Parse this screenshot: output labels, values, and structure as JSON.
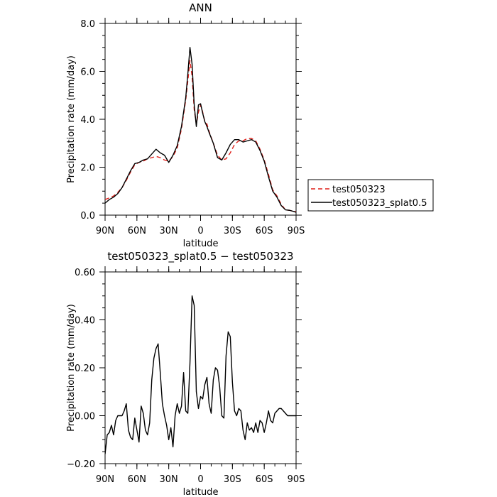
{
  "chart_data": [
    {
      "type": "line",
      "title": "ANN",
      "xlabel": "latitude",
      "ylabel": "Precipitation rate (mm/day)",
      "x_tick_labels": [
        "90N",
        "60N",
        "30N",
        "0",
        "30S",
        "60S",
        "90S"
      ],
      "x_tick_values": [
        90,
        60,
        30,
        0,
        -30,
        -60,
        -90
      ],
      "y_tick_labels": [
        "0.0",
        "2.0",
        "4.0",
        "6.0",
        "8.0"
      ],
      "y_tick_values": [
        0,
        2,
        4,
        6,
        8
      ],
      "xlim": [
        90,
        -90
      ],
      "ylim": [
        0,
        8
      ],
      "legend": {
        "position": "right",
        "entries": [
          {
            "label": "test050323",
            "style": "dashed",
            "color": "#e0201a"
          },
          {
            "label": "test050323_splat0.5",
            "style": "solid",
            "color": "#000000"
          }
        ]
      },
      "series": [
        {
          "name": "test050323",
          "color": "#e0201a",
          "style": "dashed",
          "x": [
            90,
            86,
            82,
            78,
            74,
            70,
            66,
            62,
            58,
            54,
            50,
            46,
            42,
            38,
            34,
            30,
            26,
            22,
            18,
            14,
            12,
            10,
            8,
            6,
            4,
            2,
            0,
            -2,
            -4,
            -6,
            -8,
            -12,
            -16,
            -20,
            -24,
            -28,
            -32,
            -36,
            -40,
            -44,
            -48,
            -52,
            -56,
            -60,
            -64,
            -68,
            -72,
            -76,
            -80,
            -84,
            -88,
            -90
          ],
          "y": [
            0.65,
            0.72,
            0.8,
            0.95,
            1.15,
            1.45,
            1.8,
            2.1,
            2.2,
            2.25,
            2.35,
            2.4,
            2.45,
            2.4,
            2.3,
            2.25,
            2.45,
            2.8,
            3.6,
            4.8,
            5.6,
            6.45,
            5.8,
            4.4,
            3.8,
            4.3,
            4.6,
            4.3,
            3.9,
            3.8,
            3.5,
            3.0,
            2.5,
            2.3,
            2.35,
            2.6,
            2.95,
            3.1,
            3.1,
            3.2,
            3.2,
            3.1,
            2.75,
            2.3,
            1.7,
            1.05,
            0.8,
            0.45,
            0.22,
            0.2,
            0.15,
            0.15
          ]
        },
        {
          "name": "test050323_splat0.5",
          "color": "#000000",
          "style": "solid",
          "x": [
            90,
            86,
            82,
            78,
            74,
            70,
            66,
            62,
            58,
            54,
            50,
            46,
            42,
            38,
            34,
            30,
            26,
            22,
            18,
            14,
            12,
            10,
            8,
            6,
            4,
            2,
            0,
            -2,
            -4,
            -6,
            -8,
            -12,
            -16,
            -20,
            -24,
            -28,
            -32,
            -36,
            -40,
            -44,
            -48,
            -52,
            -56,
            -60,
            -64,
            -68,
            -72,
            -76,
            -80,
            -84,
            -88,
            -90
          ],
          "y": [
            0.5,
            0.65,
            0.75,
            0.9,
            1.15,
            1.5,
            1.85,
            2.15,
            2.2,
            2.3,
            2.35,
            2.55,
            2.75,
            2.6,
            2.5,
            2.2,
            2.5,
            2.9,
            3.7,
            4.9,
            5.9,
            7.0,
            6.3,
            4.6,
            3.7,
            4.6,
            4.65,
            4.25,
            3.9,
            3.7,
            3.45,
            3.0,
            2.4,
            2.3,
            2.6,
            2.95,
            3.15,
            3.15,
            3.05,
            3.1,
            3.15,
            3.05,
            2.7,
            2.25,
            1.6,
            1.0,
            0.75,
            0.4,
            0.22,
            0.2,
            0.15,
            0.12
          ]
        }
      ]
    },
    {
      "type": "line",
      "title": "test050323_splat0.5 − test050323",
      "xlabel": "latitude",
      "ylabel": "Precipitation rate (mm/day)",
      "x_tick_labels": [
        "90N",
        "60N",
        "30N",
        "0",
        "30S",
        "60S",
        "90S"
      ],
      "x_tick_values": [
        90,
        60,
        30,
        0,
        -30,
        -60,
        -90
      ],
      "y_tick_labels": [
        "−0.20",
        "0.00",
        "0.20",
        "0.40",
        "0.60"
      ],
      "y_tick_values": [
        -0.2,
        0,
        0.2,
        0.4,
        0.6
      ],
      "xlim": [
        90,
        -90
      ],
      "ylim": [
        -0.2,
        0.6
      ],
      "series": [
        {
          "color": "#000000",
          "style": "solid",
          "x": [
            90,
            88,
            86,
            84,
            82,
            80,
            78,
            76,
            74,
            72,
            70,
            68,
            66,
            64,
            62,
            60,
            58,
            56,
            54,
            52,
            50,
            48,
            46,
            44,
            42,
            40,
            38,
            36,
            34,
            32,
            30,
            28,
            26,
            24,
            22,
            20,
            18,
            16,
            14,
            12,
            10,
            8,
            6,
            4,
            2,
            0,
            -2,
            -4,
            -6,
            -8,
            -10,
            -12,
            -14,
            -16,
            -18,
            -20,
            -22,
            -24,
            -26,
            -28,
            -30,
            -32,
            -34,
            -36,
            -38,
            -40,
            -42,
            -44,
            -46,
            -48,
            -50,
            -52,
            -54,
            -56,
            -58,
            -60,
            -62,
            -64,
            -66,
            -68,
            -70,
            -72,
            -74,
            -76,
            -78,
            -80,
            -82,
            -84,
            -86,
            -88,
            -90
          ],
          "y": [
            -0.16,
            -0.08,
            -0.07,
            -0.04,
            -0.08,
            -0.02,
            0.0,
            0.0,
            0.0,
            0.02,
            0.05,
            -0.06,
            -0.09,
            -0.1,
            -0.01,
            -0.06,
            -0.11,
            0.04,
            0.01,
            -0.06,
            -0.08,
            -0.03,
            0.15,
            0.24,
            0.28,
            0.3,
            0.18,
            0.05,
            0.0,
            -0.04,
            -0.1,
            -0.05,
            -0.13,
            0.0,
            0.05,
            0.01,
            0.04,
            0.18,
            0.02,
            0.01,
            0.22,
            0.5,
            0.46,
            0.1,
            0.03,
            0.08,
            0.07,
            0.13,
            0.16,
            0.05,
            0.01,
            0.15,
            0.2,
            0.19,
            0.12,
            0.0,
            -0.01,
            0.25,
            0.35,
            0.33,
            0.14,
            0.02,
            0.0,
            0.03,
            0.02,
            -0.06,
            -0.1,
            -0.03,
            -0.06,
            -0.05,
            -0.07,
            -0.03,
            -0.07,
            -0.02,
            -0.03,
            -0.07,
            -0.03,
            0.02,
            -0.02,
            -0.03,
            0.01,
            0.02,
            0.03,
            0.03,
            0.02,
            0.01,
            0.0,
            0.0,
            0.0,
            0.0,
            0.0
          ]
        }
      ]
    }
  ]
}
